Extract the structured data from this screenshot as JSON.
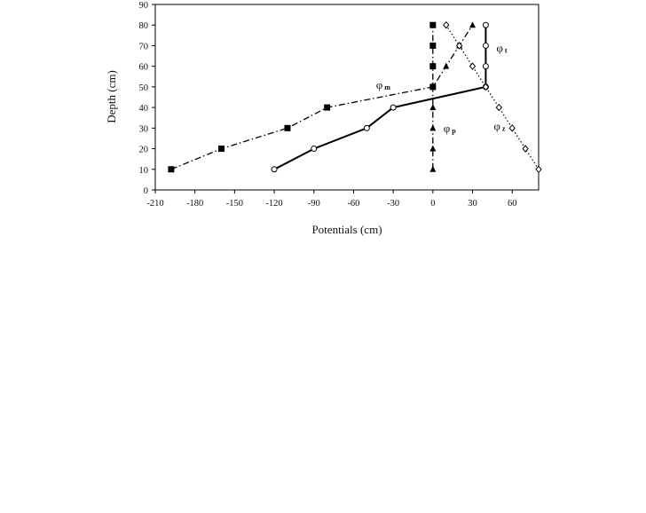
{
  "chart_data": {
    "type": "line",
    "title": "",
    "xlabel": "Potentials (cm)",
    "ylabel": "Depth (cm)",
    "xlim": [
      -210,
      80
    ],
    "ylim": [
      0,
      90
    ],
    "xticks": [
      "-210",
      "-180",
      "-150",
      "-120",
      "-90",
      "-60",
      "-30",
      "0",
      "30",
      "60"
    ],
    "yticks": [
      "0",
      "10",
      "20",
      "30",
      "40",
      "50",
      "60",
      "70",
      "80",
      "90"
    ],
    "grid": false,
    "legend": "none",
    "series": [
      {
        "label": "φ",
        "sub": "m",
        "style": "dash-dot",
        "marker": "square-filled",
        "points": [
          {
            "x": -198,
            "y": 10
          },
          {
            "x": -160,
            "y": 20
          },
          {
            "x": -110,
            "y": 30
          },
          {
            "x": -80,
            "y": 40
          },
          {
            "x": 0,
            "y": 50
          },
          {
            "x": 0,
            "y": 60
          },
          {
            "x": 0,
            "y": 70
          },
          {
            "x": 0,
            "y": 80
          }
        ]
      },
      {
        "label": "φ",
        "sub": "t",
        "style": "solid",
        "marker": "circle-open",
        "points": [
          {
            "x": -120,
            "y": 10
          },
          {
            "x": -90,
            "y": 20
          },
          {
            "x": -50,
            "y": 30
          },
          {
            "x": -30,
            "y": 40
          },
          {
            "x": 40,
            "y": 50
          },
          {
            "x": 40,
            "y": 60
          },
          {
            "x": 40,
            "y": 70
          },
          {
            "x": 40,
            "y": 80
          }
        ]
      },
      {
        "label": "φ",
        "sub": "p",
        "style": "dash-dot",
        "marker": "triangle-filled",
        "points": [
          {
            "x": 0,
            "y": 10
          },
          {
            "x": 0,
            "y": 20
          },
          {
            "x": 0,
            "y": 30
          },
          {
            "x": 0,
            "y": 40
          },
          {
            "x": 0,
            "y": 50
          },
          {
            "x": 10,
            "y": 60
          },
          {
            "x": 20,
            "y": 70
          },
          {
            "x": 30,
            "y": 80
          }
        ]
      },
      {
        "label": "φ",
        "sub": "z",
        "style": "dotted",
        "marker": "diamond-open",
        "points": [
          {
            "x": 80,
            "y": 10
          },
          {
            "x": 70,
            "y": 20
          },
          {
            "x": 60,
            "y": 30
          },
          {
            "x": 50,
            "y": 40
          },
          {
            "x": 40,
            "y": 50
          },
          {
            "x": 30,
            "y": 60
          },
          {
            "x": 20,
            "y": 70
          },
          {
            "x": 10,
            "y": 80
          }
        ]
      }
    ]
  }
}
